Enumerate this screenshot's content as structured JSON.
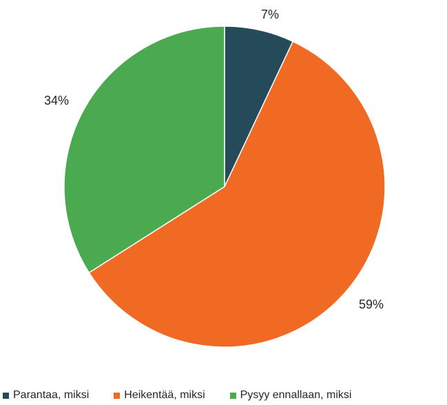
{
  "chart_data": {
    "type": "pie",
    "title": "",
    "series": [
      {
        "categories": [
          "Parantaa, miksi",
          "Heikentää, miksi",
          "Pysyy ennallaan, miksi"
        ],
        "values": [
          7,
          59,
          34
        ],
        "labels": [
          "7%",
          "59%",
          "34%"
        ],
        "colors": [
          "#254A5A",
          "#F06A24",
          "#4BA950"
        ]
      }
    ],
    "legend_position": "bottom",
    "start_angle": "12 o'clock",
    "direction": "clockwise"
  }
}
